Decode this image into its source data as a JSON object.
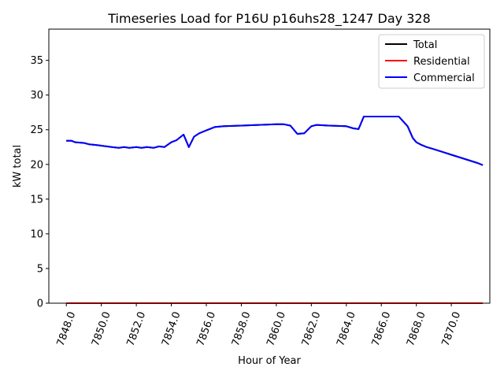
{
  "chart_data": {
    "type": "line",
    "title": "Timeseries Load for P16U p16uhs28_1247  Day 328",
    "xlabel": "Hour of Year",
    "ylabel": "kW total",
    "xlim": [
      7847.0,
      7872.2
    ],
    "ylim": [
      0,
      39.5
    ],
    "xticks": [
      7848,
      7850,
      7852,
      7854,
      7856,
      7858,
      7860,
      7862,
      7864,
      7866,
      7868,
      7870
    ],
    "xtick_labels": [
      "7848.0",
      "7850.0",
      "7852.0",
      "7854.0",
      "7856.0",
      "7858.0",
      "7860.0",
      "7862.0",
      "7864.0",
      "7866.0",
      "7868.0",
      "7870.0"
    ],
    "yticks": [
      0,
      5,
      10,
      15,
      20,
      25,
      30,
      35
    ],
    "ytick_labels": [
      "0",
      "5",
      "10",
      "15",
      "20",
      "25",
      "30",
      "35"
    ],
    "grid": false,
    "legend_position": "top-right",
    "series": [
      {
        "name": "Total",
        "color": "#000000",
        "x": [
          7848.0,
          7848.3,
          7848.5,
          7849.0,
          7849.3,
          7849.7,
          7850.0,
          7850.3,
          7850.6,
          7851.0,
          7851.3,
          7851.6,
          7852.0,
          7852.3,
          7852.6,
          7853.0,
          7853.3,
          7853.6,
          7854.0,
          7854.3,
          7854.7,
          7855.0,
          7855.3,
          7855.6,
          7856.0,
          7856.5,
          7857.0,
          7858.0,
          7859.0,
          7860.0,
          7860.4,
          7860.8,
          7861.2,
          7861.6,
          7862.0,
          7862.3,
          7863.0,
          7864.0,
          7864.4,
          7864.7,
          7865.0,
          7866.0,
          7866.5,
          7867.0,
          7867.5,
          7867.8,
          7868.0,
          7868.3,
          7868.6,
          7869.0,
          7869.5,
          7870.0,
          7870.5,
          7871.0,
          7871.5,
          7871.8
        ],
        "values": [
          23.4,
          23.4,
          23.2,
          23.1,
          22.9,
          22.8,
          22.7,
          22.6,
          22.5,
          22.4,
          22.5,
          22.4,
          22.5,
          22.4,
          22.5,
          22.4,
          22.6,
          22.5,
          23.2,
          23.5,
          24.3,
          22.5,
          24.0,
          24.5,
          24.9,
          25.4,
          25.5,
          25.6,
          25.7,
          25.8,
          25.8,
          25.6,
          24.4,
          24.5,
          25.5,
          25.7,
          25.6,
          25.5,
          25.2,
          25.1,
          26.9,
          26.9,
          26.9,
          26.9,
          25.5,
          23.8,
          23.2,
          22.8,
          22.5,
          22.2,
          21.8,
          21.4,
          21.0,
          20.6,
          20.2,
          19.9
        ]
      },
      {
        "name": "Residential",
        "color": "#ff0000",
        "x": [
          7848.0,
          7871.8
        ],
        "values": [
          0,
          0
        ]
      },
      {
        "name": "Commercial",
        "color": "#0000ff",
        "x": [
          7848.0,
          7848.3,
          7848.5,
          7849.0,
          7849.3,
          7849.7,
          7850.0,
          7850.3,
          7850.6,
          7851.0,
          7851.3,
          7851.6,
          7852.0,
          7852.3,
          7852.6,
          7853.0,
          7853.3,
          7853.6,
          7854.0,
          7854.3,
          7854.7,
          7855.0,
          7855.3,
          7855.6,
          7856.0,
          7856.5,
          7857.0,
          7858.0,
          7859.0,
          7860.0,
          7860.4,
          7860.8,
          7861.2,
          7861.6,
          7862.0,
          7862.3,
          7863.0,
          7864.0,
          7864.4,
          7864.7,
          7865.0,
          7866.0,
          7866.5,
          7867.0,
          7867.5,
          7867.8,
          7868.0,
          7868.3,
          7868.6,
          7869.0,
          7869.5,
          7870.0,
          7870.5,
          7871.0,
          7871.5,
          7871.8
        ],
        "values": [
          23.4,
          23.4,
          23.2,
          23.1,
          22.9,
          22.8,
          22.7,
          22.6,
          22.5,
          22.4,
          22.5,
          22.4,
          22.5,
          22.4,
          22.5,
          22.4,
          22.6,
          22.5,
          23.2,
          23.5,
          24.3,
          22.5,
          24.0,
          24.5,
          24.9,
          25.4,
          25.5,
          25.6,
          25.7,
          25.8,
          25.8,
          25.6,
          24.4,
          24.5,
          25.5,
          25.7,
          25.6,
          25.5,
          25.2,
          25.1,
          26.9,
          26.9,
          26.9,
          26.9,
          25.5,
          23.8,
          23.2,
          22.8,
          22.5,
          22.2,
          21.8,
          21.4,
          21.0,
          20.6,
          20.2,
          19.9
        ]
      }
    ]
  }
}
